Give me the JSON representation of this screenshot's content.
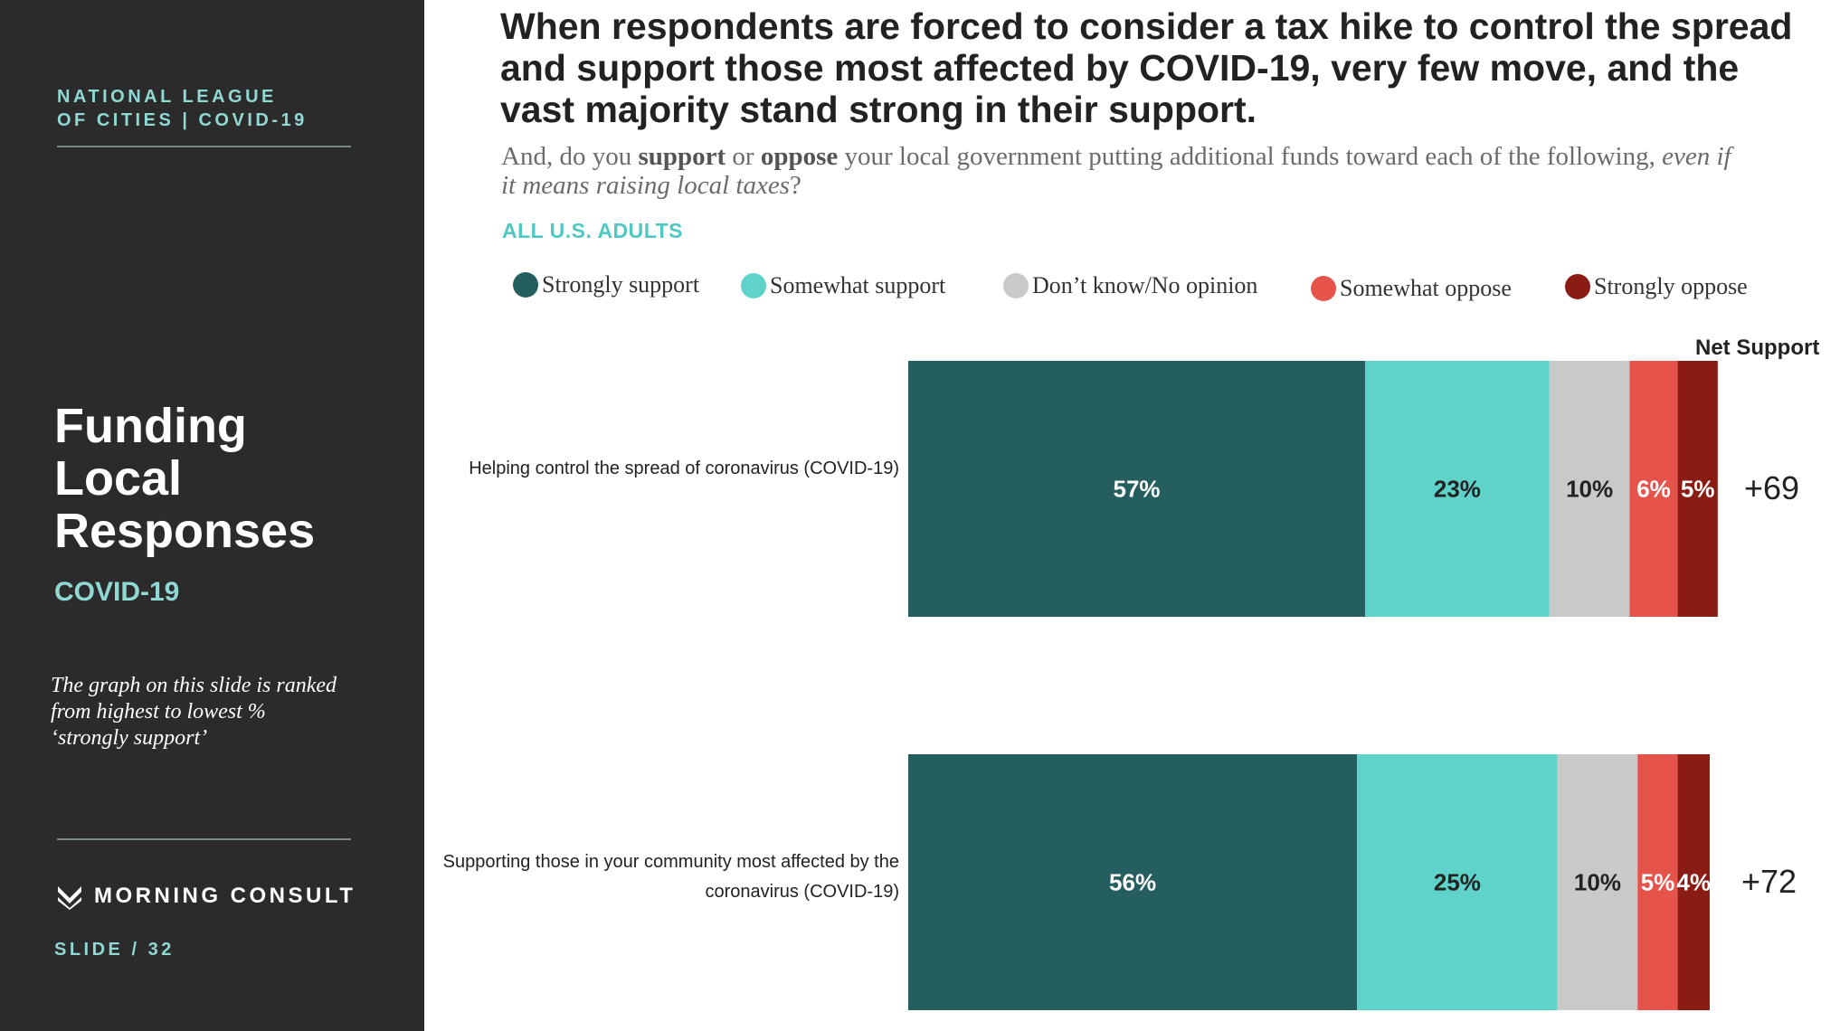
{
  "sidebar": {
    "org_line1": "NATIONAL LEAGUE",
    "org_line2": "OF CITIES | COVID-19",
    "title_line1": "Funding",
    "title_line2": "Local",
    "title_line3": "Responses",
    "subtitle": "COVID-19",
    "note": "The graph on this slide is ranked from highest to lowest % ‘strongly support’",
    "brand": "MORNING CONSULT",
    "brand_icon": "morning-consult-logo-icon",
    "slide_label": "SLIDE /  32"
  },
  "headline": "When respondents are forced to consider a tax hike to control the spread and support those most affected by COVID-19, very few move, and the vast majority stand strong in their support.",
  "question": {
    "part1": "And, do you ",
    "bold1": "support",
    "part2": " or ",
    "bold2": "oppose",
    "part3": " your local government putting additional funds toward each of the following, ",
    "italic": "even if it means raising local taxes",
    "part4": "?"
  },
  "audience": "ALL U.S. ADULTS",
  "colors": {
    "strongly_support": "#255e5f",
    "somewhat_support": "#5fd3c9",
    "dont_know": "#c9c9c9",
    "somewhat_oppose": "#e5534b",
    "strongly_oppose": "#8a1c14"
  },
  "chart_data": {
    "type": "bar",
    "orientation": "horizontal-stacked",
    "categories": [
      "Helping control the spread of coronavirus (COVID-19)",
      "Supporting those in your community most affected by the coronavirus (COVID-19)"
    ],
    "series": [
      {
        "name": "Strongly support",
        "values": [
          57,
          56
        ],
        "labels": [
          "57%",
          "56%"
        ]
      },
      {
        "name": "Somewhat support",
        "values": [
          23,
          25
        ],
        "labels": [
          "23%",
          "25%"
        ]
      },
      {
        "name": "Don’t know/No opinion",
        "values": [
          10,
          10
        ],
        "labels": [
          "10%",
          "10%"
        ]
      },
      {
        "name": "Somewhat oppose",
        "values": [
          6,
          5
        ],
        "labels": [
          "6%",
          "5%"
        ]
      },
      {
        "name": "Strongly oppose",
        "values": [
          5,
          4
        ],
        "labels": [
          "5%",
          "4%"
        ]
      }
    ],
    "net_support_header": "Net Support",
    "net_support": [
      "+69",
      "+72"
    ],
    "legend_position": "top"
  }
}
